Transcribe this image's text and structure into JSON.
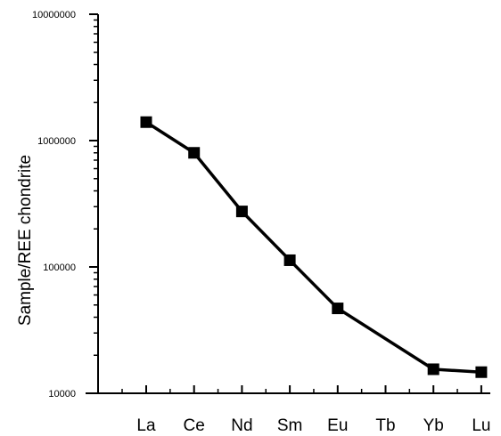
{
  "chart_data": {
    "type": "line",
    "title": "",
    "xlabel": "",
    "ylabel": "Sample/REE chondrite",
    "yscale": "log",
    "ylim": [
      10000,
      10000000
    ],
    "grid": false,
    "legend": "none",
    "categories": [
      "La",
      "Ce",
      "Nd",
      "Sm",
      "Eu",
      "Tb",
      "Yb",
      "Lu"
    ],
    "y_ticks": [
      {
        "value": 10000,
        "label": "10000"
      },
      {
        "value": 100000,
        "label": "100000"
      },
      {
        "value": 1000000,
        "label": "1000000"
      },
      {
        "value": 10000000,
        "label": "10000000"
      }
    ],
    "series": [
      {
        "marker": "square",
        "color": "#000000",
        "points": [
          {
            "x": "La",
            "y": 1400000
          },
          {
            "x": "Ce",
            "y": 800000
          },
          {
            "x": "Nd",
            "y": 275000
          },
          {
            "x": "Sm",
            "y": 113000
          },
          {
            "x": "Eu",
            "y": 47000
          },
          {
            "x": "Yb",
            "y": 15500
          },
          {
            "x": "Lu",
            "y": 14700
          }
        ]
      }
    ]
  }
}
